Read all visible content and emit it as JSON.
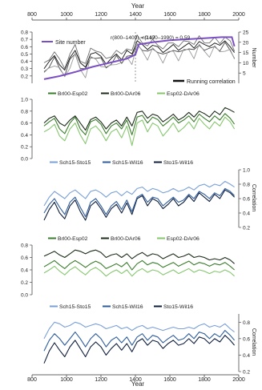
{
  "colors": {
    "site": "#7b4fc4",
    "runA": "#111111",
    "runB": "#444444",
    "runC": "#6e6e6e",
    "runD": "#9a9a9a",
    "green1": "#3a7d2c",
    "green2": "#1d2e1a",
    "green3": "#86c76e",
    "blue1": "#7aa0d8",
    "blue2": "#2f5d9c",
    "blue3": "#0f1f3d"
  },
  "chart_data": {
    "type": "line",
    "x_axis": {
      "label": "Year",
      "range": [
        800,
        2000
      ],
      "ticks": [
        800,
        1000,
        1200,
        1400,
        1600,
        1800,
        2000
      ]
    },
    "panels": [
      {
        "id": "a",
        "ylim": [
          0.1,
          0.8
        ],
        "yticks": [
          0.2,
          0.3,
          0.4,
          0.5,
          0.6,
          0.7,
          0.8
        ],
        "right_axis": {
          "label": "Number",
          "range": [
            0,
            25
          ],
          "ticks": [
            5,
            10,
            15,
            20,
            25
          ]
        },
        "annotations": [
          "r(800–1400) = 0.17",
          "r(1400–1990) = 0.59"
        ],
        "legend": [
          "Site number",
          "Running correlation"
        ],
        "site_number": {
          "name": "Site number",
          "points": [
            [
              870,
              2
            ],
            [
              960,
              3.5
            ],
            [
              1050,
              5.5
            ],
            [
              1150,
              8
            ],
            [
              1250,
              10
            ],
            [
              1350,
              12
            ],
            [
              1400,
              14
            ],
            [
              1420,
              19
            ],
            [
              1500,
              20
            ],
            [
              1600,
              21
            ],
            [
              1700,
              21.5
            ],
            [
              1800,
              22
            ],
            [
              1900,
              22.5
            ],
            [
              1960,
              22.5
            ],
            [
              1975,
              18
            ]
          ]
        },
        "running_correlation": {
          "name": "Running correlation",
          "members": 4,
          "x": [
            870,
            900,
            930,
            960,
            990,
            1020,
            1050,
            1080,
            1110,
            1140,
            1170,
            1200,
            1230,
            1260,
            1290,
            1320,
            1350,
            1380,
            1410,
            1440,
            1470,
            1500,
            1530,
            1560,
            1590,
            1620,
            1650,
            1680,
            1710,
            1740,
            1770,
            1800,
            1830,
            1860,
            1890,
            1920,
            1950,
            1975
          ],
          "mean": [
            0.3,
            0.4,
            0.48,
            0.35,
            0.28,
            0.45,
            0.55,
            0.38,
            0.32,
            0.5,
            0.52,
            0.47,
            0.36,
            0.44,
            0.5,
            0.42,
            0.55,
            0.5,
            0.68,
            0.63,
            0.56,
            0.62,
            0.6,
            0.52,
            0.57,
            0.63,
            0.55,
            0.6,
            0.65,
            0.58,
            0.67,
            0.63,
            0.6,
            0.65,
            0.62,
            0.68,
            0.6,
            0.52
          ]
        }
      },
      {
        "id": "b",
        "ylim": [
          0.0,
          1.0
        ],
        "yticks": [
          0.0,
          0.2,
          0.4,
          0.6,
          0.8,
          1.0
        ],
        "x": [
          870,
          900,
          930,
          960,
          990,
          1020,
          1050,
          1080,
          1110,
          1140,
          1170,
          1200,
          1230,
          1260,
          1290,
          1320,
          1350,
          1380,
          1410,
          1440,
          1470,
          1500,
          1530,
          1560,
          1590,
          1620,
          1650,
          1680,
          1710,
          1740,
          1770,
          1800,
          1830,
          1860,
          1890,
          1920,
          1950,
          1975
        ],
        "series": [
          {
            "name": "Brl00-Esp02",
            "values": [
              0.55,
              0.62,
              0.68,
              0.5,
              0.42,
              0.6,
              0.7,
              0.5,
              0.4,
              0.62,
              0.66,
              0.58,
              0.42,
              0.55,
              0.6,
              0.5,
              0.65,
              0.4,
              0.7,
              0.73,
              0.6,
              0.7,
              0.66,
              0.55,
              0.62,
              0.7,
              0.6,
              0.65,
              0.72,
              0.62,
              0.75,
              0.68,
              0.62,
              0.72,
              0.65,
              0.76,
              0.68,
              0.58
            ]
          },
          {
            "name": "Brl00-DAr06",
            "values": [
              0.6,
              0.68,
              0.72,
              0.6,
              0.55,
              0.65,
              0.72,
              0.6,
              0.48,
              0.66,
              0.7,
              0.62,
              0.5,
              0.6,
              0.65,
              0.55,
              0.7,
              0.55,
              0.78,
              0.8,
              0.68,
              0.75,
              0.72,
              0.62,
              0.68,
              0.75,
              0.65,
              0.7,
              0.78,
              0.7,
              0.8,
              0.76,
              0.7,
              0.8,
              0.74,
              0.86,
              0.82,
              0.78
            ]
          },
          {
            "name": "Esp02-DAr06",
            "values": [
              0.45,
              0.5,
              0.58,
              0.38,
              0.3,
              0.5,
              0.6,
              0.4,
              0.25,
              0.5,
              0.55,
              0.45,
              0.3,
              0.45,
              0.5,
              0.35,
              0.55,
              0.22,
              0.6,
              0.65,
              0.45,
              0.6,
              0.55,
              0.38,
              0.48,
              0.6,
              0.45,
              0.52,
              0.62,
              0.5,
              0.68,
              0.58,
              0.5,
              0.62,
              0.55,
              0.7,
              0.62,
              0.5
            ]
          }
        ]
      },
      {
        "id": "b2",
        "ylim": [
          0.2,
          1.0
        ],
        "yticks": [
          0.2,
          0.4,
          0.6,
          0.8,
          1.0
        ],
        "ylabel": "Correlation",
        "x": [
          870,
          900,
          930,
          960,
          990,
          1020,
          1050,
          1080,
          1110,
          1140,
          1170,
          1200,
          1230,
          1260,
          1290,
          1320,
          1350,
          1380,
          1410,
          1440,
          1470,
          1500,
          1530,
          1560,
          1590,
          1620,
          1650,
          1680,
          1710,
          1740,
          1770,
          1800,
          1830,
          1860,
          1890,
          1920,
          1950,
          1975
        ],
        "series": [
          {
            "name": "Sch15-Sto15",
            "values": [
              0.5,
              0.62,
              0.7,
              0.65,
              0.6,
              0.68,
              0.72,
              0.66,
              0.6,
              0.7,
              0.72,
              0.68,
              0.62,
              0.68,
              0.7,
              0.64,
              0.7,
              0.66,
              0.74,
              0.76,
              0.7,
              0.74,
              0.72,
              0.68,
              0.7,
              0.74,
              0.7,
              0.72,
              0.76,
              0.72,
              0.78,
              0.8,
              0.76,
              0.8,
              0.78,
              0.84,
              0.8,
              0.76
            ]
          },
          {
            "name": "Sch15-Wil16",
            "values": [
              0.4,
              0.52,
              0.6,
              0.48,
              0.38,
              0.55,
              0.62,
              0.48,
              0.35,
              0.55,
              0.6,
              0.5,
              0.38,
              0.5,
              0.56,
              0.45,
              0.58,
              0.42,
              0.62,
              0.66,
              0.55,
              0.62,
              0.6,
              0.5,
              0.56,
              0.62,
              0.55,
              0.58,
              0.66,
              0.6,
              0.7,
              0.66,
              0.6,
              0.68,
              0.64,
              0.74,
              0.7,
              0.64
            ]
          },
          {
            "name": "Sto15-Wil16",
            "values": [
              0.3,
              0.45,
              0.55,
              0.4,
              0.32,
              0.5,
              0.58,
              0.42,
              0.3,
              0.5,
              0.56,
              0.46,
              0.34,
              0.46,
              0.52,
              0.4,
              0.54,
              0.38,
              0.6,
              0.64,
              0.5,
              0.6,
              0.56,
              0.46,
              0.52,
              0.6,
              0.5,
              0.55,
              0.64,
              0.56,
              0.68,
              0.62,
              0.56,
              0.66,
              0.6,
              0.72,
              0.68,
              0.62
            ]
          }
        ]
      },
      {
        "id": "c",
        "ylim": [
          0.0,
          0.8
        ],
        "yticks": [
          0.0,
          0.2,
          0.4,
          0.6,
          0.8
        ],
        "x": [
          870,
          900,
          930,
          960,
          990,
          1020,
          1050,
          1080,
          1110,
          1140,
          1170,
          1200,
          1230,
          1260,
          1290,
          1320,
          1350,
          1380,
          1410,
          1440,
          1470,
          1500,
          1530,
          1560,
          1590,
          1620,
          1650,
          1680,
          1710,
          1740,
          1770,
          1800,
          1830,
          1860,
          1890,
          1920,
          1950,
          1975
        ],
        "series": [
          {
            "name": "Brl00-Esp02",
            "values": [
              0.45,
              0.5,
              0.55,
              0.48,
              0.42,
              0.5,
              0.55,
              0.5,
              0.44,
              0.5,
              0.54,
              0.5,
              0.42,
              0.46,
              0.5,
              0.45,
              0.52,
              0.4,
              0.5,
              0.55,
              0.48,
              0.52,
              0.5,
              0.44,
              0.48,
              0.52,
              0.46,
              0.5,
              0.54,
              0.48,
              0.52,
              0.5,
              0.46,
              0.5,
              0.48,
              0.52,
              0.46,
              0.4
            ]
          },
          {
            "name": "Brl00-DAr06",
            "values": [
              0.62,
              0.66,
              0.7,
              0.64,
              0.6,
              0.66,
              0.72,
              0.7,
              0.66,
              0.7,
              0.72,
              0.68,
              0.6,
              0.64,
              0.66,
              0.6,
              0.66,
              0.58,
              0.64,
              0.68,
              0.62,
              0.66,
              0.64,
              0.58,
              0.62,
              0.66,
              0.6,
              0.62,
              0.66,
              0.6,
              0.62,
              0.6,
              0.56,
              0.58,
              0.56,
              0.6,
              0.56,
              0.5
            ]
          },
          {
            "name": "Esp02-DAr06",
            "values": [
              0.35,
              0.4,
              0.46,
              0.38,
              0.32,
              0.4,
              0.45,
              0.38,
              0.32,
              0.4,
              0.44,
              0.38,
              0.3,
              0.36,
              0.4,
              0.34,
              0.4,
              0.3,
              0.38,
              0.42,
              0.36,
              0.4,
              0.38,
              0.32,
              0.36,
              0.4,
              0.34,
              0.38,
              0.42,
              0.36,
              0.4,
              0.38,
              0.34,
              0.38,
              0.36,
              0.4,
              0.36,
              0.3
            ]
          }
        ]
      },
      {
        "id": "c2",
        "ylim": [
          0.2,
          0.9
        ],
        "yticks": [
          0.2,
          0.4,
          0.6,
          0.8
        ],
        "ylabel": "Correlation",
        "x": [
          870,
          900,
          930,
          960,
          990,
          1020,
          1050,
          1080,
          1110,
          1140,
          1170,
          1200,
          1230,
          1260,
          1290,
          1320,
          1350,
          1380,
          1410,
          1440,
          1470,
          1500,
          1530,
          1560,
          1590,
          1620,
          1650,
          1680,
          1710,
          1740,
          1770,
          1800,
          1830,
          1860,
          1890,
          1920,
          1950,
          1975
        ],
        "series": [
          {
            "name": "Sch15-Sto15",
            "values": [
              0.6,
              0.72,
              0.8,
              0.78,
              0.74,
              0.76,
              0.8,
              0.78,
              0.74,
              0.76,
              0.78,
              0.76,
              0.72,
              0.74,
              0.76,
              0.72,
              0.74,
              0.7,
              0.74,
              0.76,
              0.72,
              0.74,
              0.72,
              0.7,
              0.72,
              0.74,
              0.72,
              0.72,
              0.74,
              0.72,
              0.76,
              0.78,
              0.74,
              0.76,
              0.74,
              0.78,
              0.72,
              0.68
            ]
          },
          {
            "name": "Sch15-Wil16",
            "values": [
              0.45,
              0.58,
              0.66,
              0.6,
              0.52,
              0.6,
              0.68,
              0.6,
              0.5,
              0.6,
              0.66,
              0.6,
              0.5,
              0.58,
              0.62,
              0.55,
              0.62,
              0.52,
              0.62,
              0.66,
              0.58,
              0.64,
              0.62,
              0.55,
              0.6,
              0.64,
              0.58,
              0.6,
              0.66,
              0.6,
              0.68,
              0.66,
              0.6,
              0.66,
              0.62,
              0.7,
              0.64,
              0.58
            ]
          },
          {
            "name": "Sto15-Wil16",
            "values": [
              0.3,
              0.45,
              0.55,
              0.46,
              0.38,
              0.5,
              0.58,
              0.48,
              0.38,
              0.5,
              0.56,
              0.5,
              0.4,
              0.48,
              0.54,
              0.46,
              0.54,
              0.44,
              0.56,
              0.6,
              0.52,
              0.58,
              0.56,
              0.48,
              0.54,
              0.58,
              0.52,
              0.54,
              0.6,
              0.54,
              0.62,
              0.6,
              0.54,
              0.6,
              0.56,
              0.64,
              0.58,
              0.52
            ]
          }
        ]
      }
    ]
  }
}
